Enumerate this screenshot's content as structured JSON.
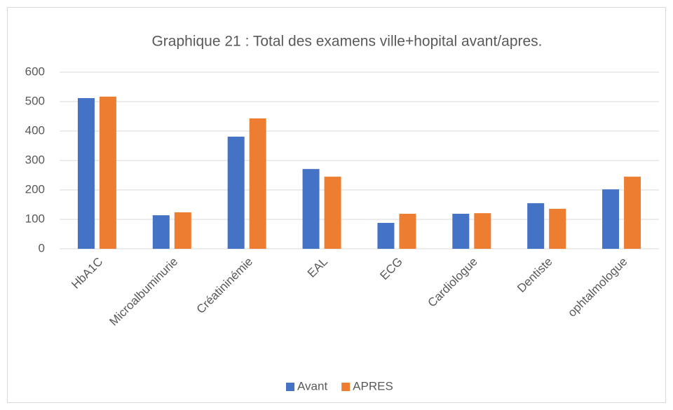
{
  "chart_data": {
    "type": "bar",
    "title": "Graphique 21 : Total des examens ville+hopital avant/apres.",
    "categories": [
      "HbA1C",
      "Microalbuminurie",
      "Créatininémie",
      "EAL",
      "ECG",
      "Cardiologue",
      "Dentiste",
      "ophtalmologue"
    ],
    "series": [
      {
        "name": "Avant",
        "color": "#4472c4",
        "values": [
          512,
          114,
          381,
          271,
          88,
          119,
          155,
          202
        ]
      },
      {
        "name": "APRES",
        "color": "#ed7d31",
        "values": [
          517,
          124,
          443,
          245,
          119,
          121,
          136,
          245
        ]
      }
    ],
    "ylim": [
      0,
      600
    ],
    "yticks": [
      0,
      100,
      200,
      300,
      400,
      500,
      600
    ],
    "grid": true,
    "legend": "bottom"
  }
}
